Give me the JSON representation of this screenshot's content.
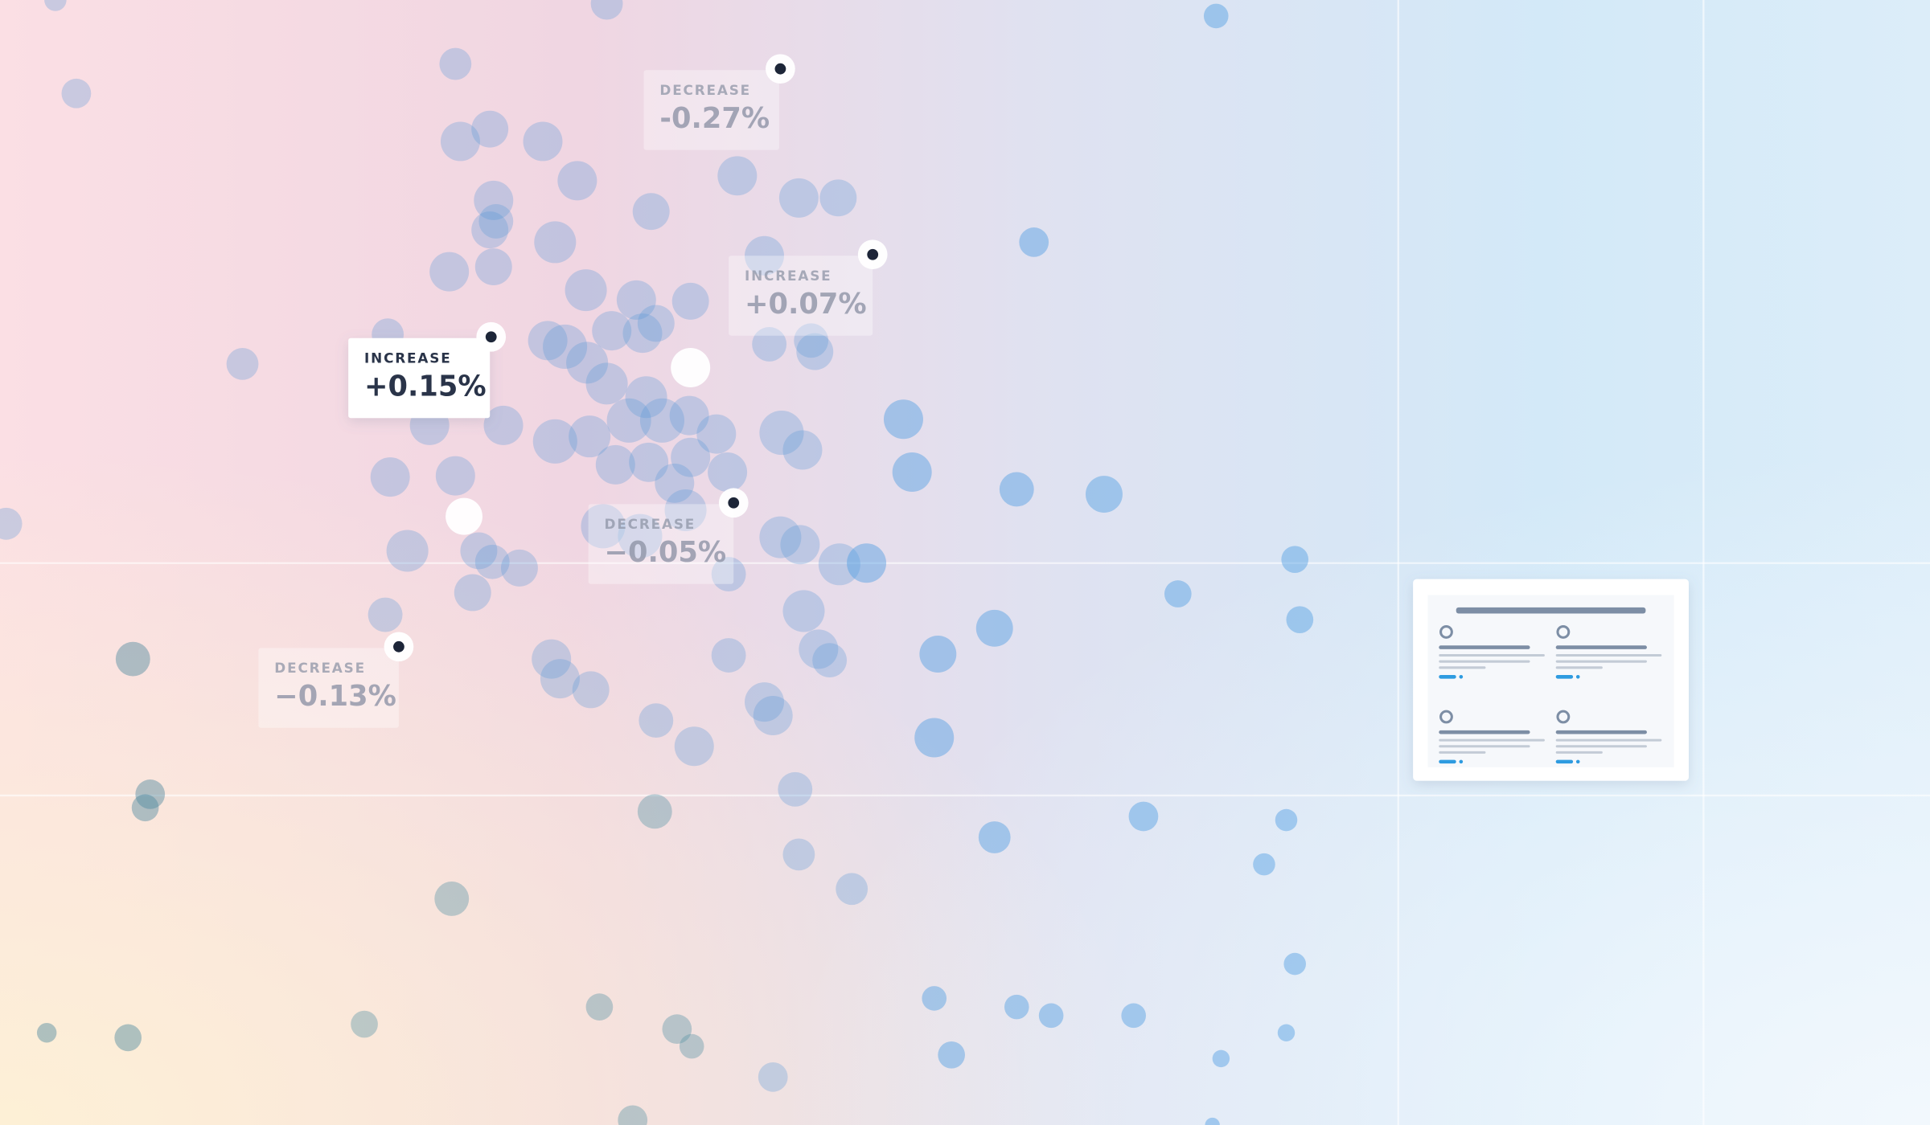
{
  "callouts": [
    {
      "label": "DECREASE",
      "value": "-0.27%"
    },
    {
      "label": "INCREASE",
      "value": "+0.07%"
    },
    {
      "label": "INCREASE",
      "value": "+0.15%"
    },
    {
      "label": "DECREASE",
      "value": "−0.05%"
    },
    {
      "label": "DECREASE",
      "value": "−0.13%"
    }
  ]
}
